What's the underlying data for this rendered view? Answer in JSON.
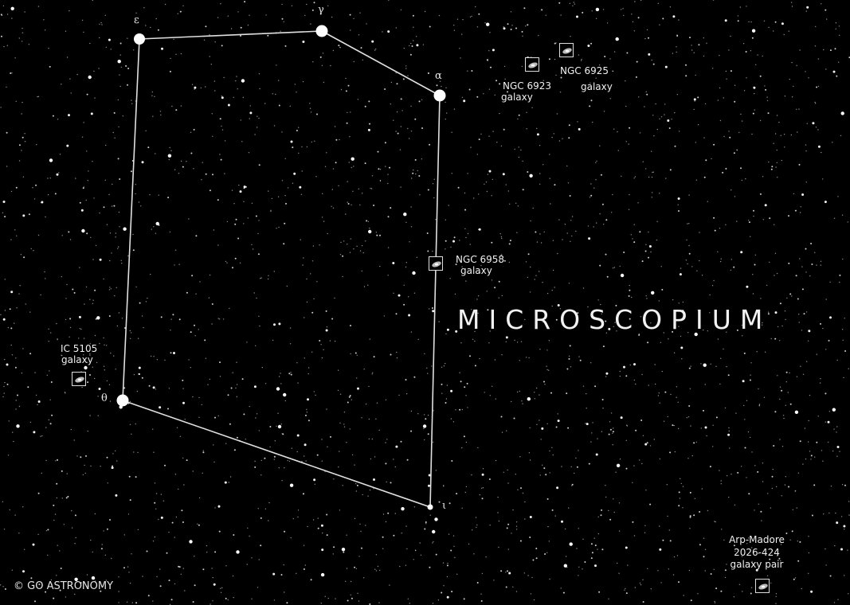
{
  "constellation": {
    "name": "MICROSCOPIUM",
    "stars": [
      {
        "id": "epsilon",
        "greek": "ε"
      },
      {
        "id": "gamma",
        "greek": "γ"
      },
      {
        "id": "alpha",
        "greek": "α"
      },
      {
        "id": "iota",
        "greek": "ι"
      },
      {
        "id": "theta",
        "greek": "θ"
      }
    ]
  },
  "objects": [
    {
      "id": "ngc6925",
      "name": "NGC 6925",
      "type": "galaxy"
    },
    {
      "id": "ngc6923",
      "name": "NGC 6923",
      "type": "galaxy"
    },
    {
      "id": "ngc6958",
      "name": "NGC 6958",
      "type": "galaxy"
    },
    {
      "id": "ic5105",
      "name": "IC 5105",
      "type": "galaxy"
    },
    {
      "id": "arpmadore",
      "name": "Arp-Madore",
      "designation": "2026-424",
      "type": "galaxy pair"
    }
  ],
  "colors": {
    "background": "#000000",
    "stars": "#ffffff",
    "lines": "#e0e0e0",
    "labels": "#f0f0f0"
  },
  "icons": {
    "galaxy": "galaxy-icon"
  },
  "copyright": "© GO ASTRONOMY"
}
